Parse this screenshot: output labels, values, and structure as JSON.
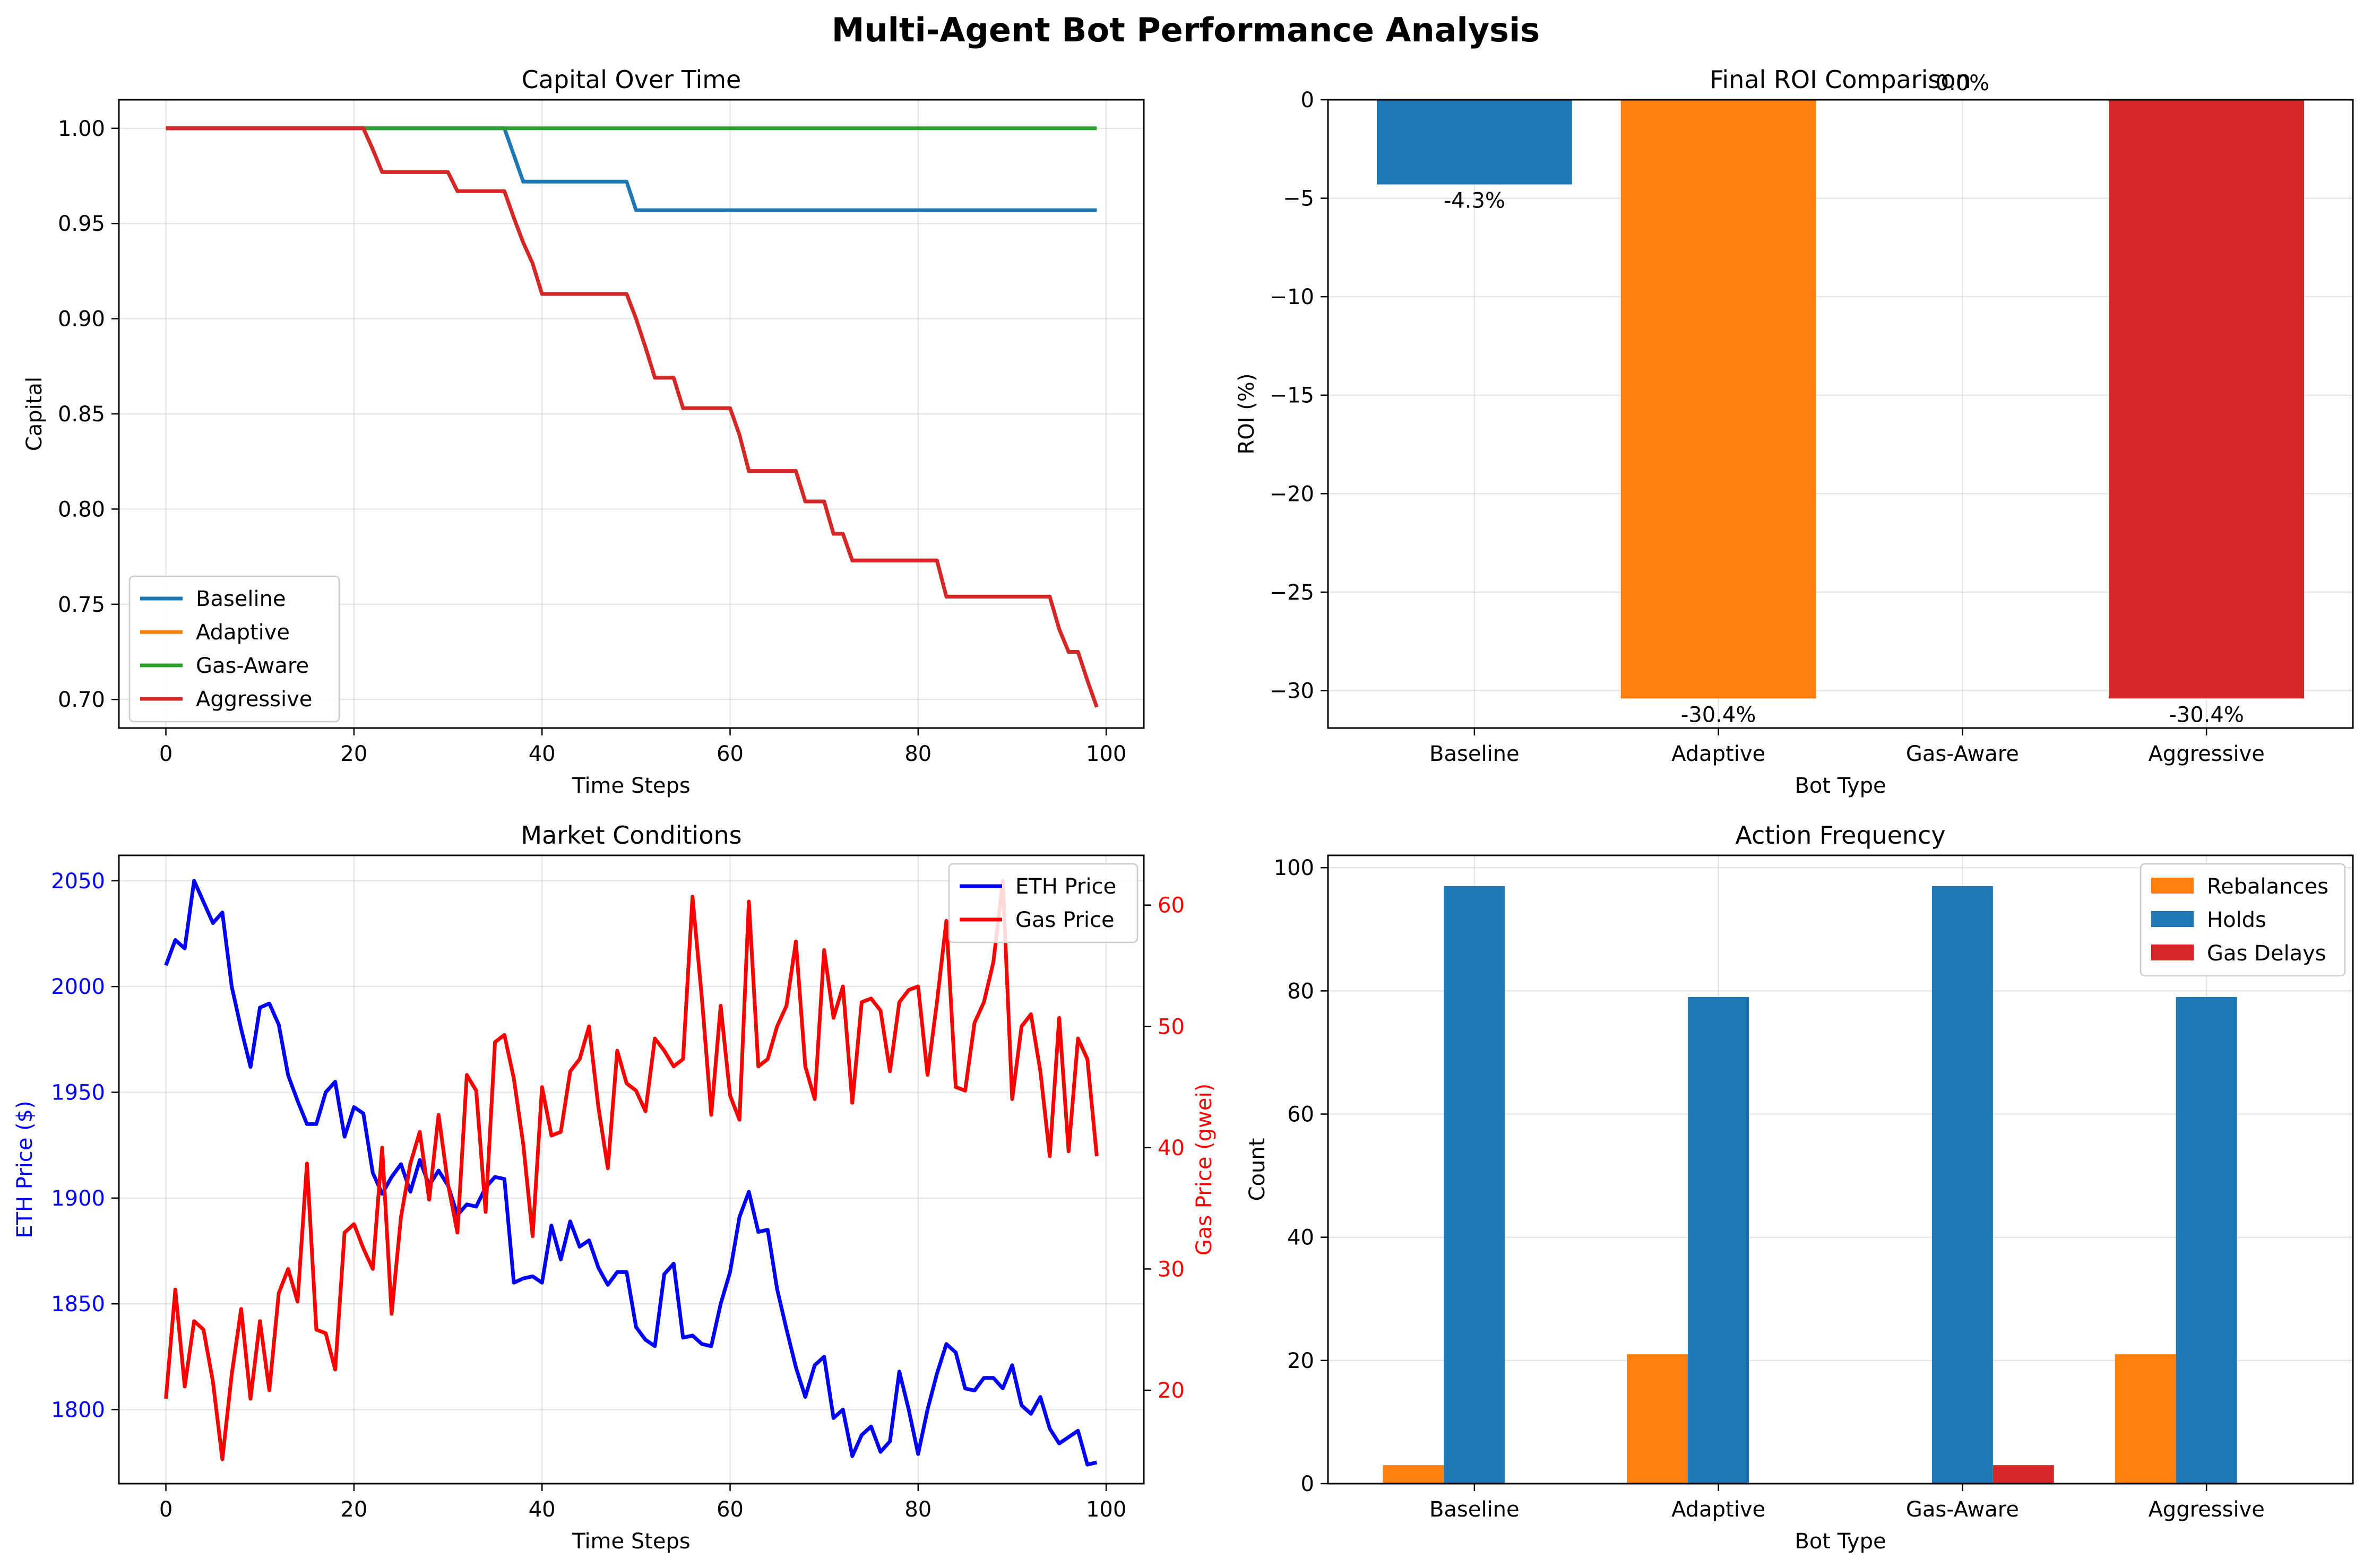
{
  "figure": {
    "title": "Multi-Agent Bot Performance Analysis"
  },
  "chart_data": [
    {
      "id": "capital",
      "type": "line",
      "title": "Capital Over Time",
      "xlabel": "Time Steps",
      "ylabel": "Capital",
      "xlim": [
        -5,
        104
      ],
      "ylim": [
        0.685,
        1.015
      ],
      "xticks": [
        0,
        20,
        40,
        60,
        80,
        100
      ],
      "yticks": [
        0.7,
        0.75,
        0.8,
        0.85,
        0.9,
        0.95,
        1.0
      ],
      "grid": true,
      "legend": "lower-left",
      "series": [
        {
          "name": "Baseline",
          "color": "#1f77b4",
          "points": [
            [
              0,
              1.0
            ],
            [
              36,
              1.0
            ],
            [
              38,
              0.972
            ],
            [
              49,
              0.972
            ],
            [
              50,
              0.957
            ],
            [
              99,
              0.957
            ]
          ]
        },
        {
          "name": "Adaptive",
          "color": "#ff7f0e",
          "points": [
            [
              0,
              1.0
            ],
            [
              21,
              1.0
            ],
            [
              22,
              0.989
            ],
            [
              23,
              0.977
            ],
            [
              30,
              0.977
            ],
            [
              31,
              0.967
            ],
            [
              36,
              0.967
            ],
            [
              37,
              0.953
            ],
            [
              38,
              0.94
            ],
            [
              39,
              0.929
            ],
            [
              40,
              0.913
            ],
            [
              49,
              0.913
            ],
            [
              50,
              0.9
            ],
            [
              51,
              0.885
            ],
            [
              52,
              0.869
            ],
            [
              54,
              0.869
            ],
            [
              55,
              0.853
            ],
            [
              60,
              0.853
            ],
            [
              61,
              0.839
            ],
            [
              62,
              0.82
            ],
            [
              67,
              0.82
            ],
            [
              68,
              0.804
            ],
            [
              70,
              0.804
            ],
            [
              71,
              0.787
            ],
            [
              72,
              0.787
            ],
            [
              73,
              0.773
            ],
            [
              82,
              0.773
            ],
            [
              83,
              0.754
            ],
            [
              94,
              0.754
            ],
            [
              95,
              0.737
            ],
            [
              96,
              0.725
            ],
            [
              97,
              0.725
            ],
            [
              98,
              0.71
            ],
            [
              99,
              0.696
            ]
          ]
        },
        {
          "name": "Gas-Aware",
          "color": "#2ca02c",
          "points": [
            [
              0,
              1.0
            ],
            [
              99,
              1.0
            ]
          ]
        },
        {
          "name": "Aggressive",
          "color": "#d62728",
          "points": [
            [
              0,
              1.0
            ],
            [
              21,
              1.0
            ],
            [
              22,
              0.989
            ],
            [
              23,
              0.977
            ],
            [
              30,
              0.977
            ],
            [
              31,
              0.967
            ],
            [
              36,
              0.967
            ],
            [
              37,
              0.953
            ],
            [
              38,
              0.94
            ],
            [
              39,
              0.929
            ],
            [
              40,
              0.913
            ],
            [
              49,
              0.913
            ],
            [
              50,
              0.9
            ],
            [
              51,
              0.885
            ],
            [
              52,
              0.869
            ],
            [
              54,
              0.869
            ],
            [
              55,
              0.853
            ],
            [
              60,
              0.853
            ],
            [
              61,
              0.839
            ],
            [
              62,
              0.82
            ],
            [
              67,
              0.82
            ],
            [
              68,
              0.804
            ],
            [
              70,
              0.804
            ],
            [
              71,
              0.787
            ],
            [
              72,
              0.787
            ],
            [
              73,
              0.773
            ],
            [
              82,
              0.773
            ],
            [
              83,
              0.754
            ],
            [
              94,
              0.754
            ],
            [
              95,
              0.737
            ],
            [
              96,
              0.725
            ],
            [
              97,
              0.725
            ],
            [
              98,
              0.71
            ],
            [
              99,
              0.696
            ]
          ]
        }
      ]
    },
    {
      "id": "roi",
      "type": "bar",
      "title": "Final ROI Comparison",
      "xlabel": "Bot Type",
      "ylabel": "ROI (%)",
      "categories": [
        "Baseline",
        "Adaptive",
        "Gas-Aware",
        "Aggressive"
      ],
      "values": [
        -4.3,
        -30.4,
        0.0,
        -30.4
      ],
      "labels": [
        "-4.3%",
        "-30.4%",
        "0.0%",
        "-30.4%"
      ],
      "colors": [
        "#1f77b4",
        "#ff7f0e",
        "#2ca02c",
        "#d62728"
      ],
      "ylim": [
        -31.9,
        0
      ],
      "yticks": [
        0,
        -5,
        -10,
        -15,
        -20,
        -25,
        -30
      ],
      "grid": true
    },
    {
      "id": "market",
      "type": "line",
      "title": "Market Conditions",
      "xlabel": "Time Steps",
      "ylabel_left": "ETH Price ($)",
      "ylabel_right": "Gas Price (gwei)",
      "xlim": [
        -5,
        104
      ],
      "ylim_left": [
        1765,
        2062
      ],
      "ylim_right": [
        12.3,
        64.1
      ],
      "xticks": [
        0,
        20,
        40,
        60,
        80,
        100
      ],
      "yticks_left": [
        1800,
        1850,
        1900,
        1950,
        2000,
        2050
      ],
      "yticks_right": [
        20,
        30,
        40,
        50,
        60
      ],
      "grid": true,
      "legend": "top-right",
      "series": [
        {
          "name": "ETH Price",
          "color": "#0000ff",
          "axis": "left",
          "values": [
            2010,
            2022,
            2018,
            2050,
            2040,
            2030,
            2035,
            2000,
            1980,
            1962,
            1990,
            1992,
            1982,
            1958,
            1946,
            1935,
            1935,
            1950,
            1955,
            1929,
            1943,
            1940,
            1912,
            1902,
            1910,
            1916,
            1903,
            1918,
            1906,
            1913,
            1906,
            1892,
            1897,
            1896,
            1905,
            1910,
            1909,
            1860,
            1862,
            1863,
            1860,
            1887,
            1871,
            1889,
            1877,
            1880,
            1867,
            1859,
            1865,
            1865,
            1839,
            1833,
            1830,
            1864,
            1869,
            1834,
            1835,
            1831,
            1830,
            1850,
            1865,
            1891,
            1903,
            1884,
            1885,
            1857,
            1838,
            1820,
            1806,
            1821,
            1825,
            1796,
            1800,
            1778,
            1788,
            1792,
            1780,
            1785,
            1818,
            1800,
            1779,
            1800,
            1817,
            1831,
            1827,
            1810,
            1809,
            1815,
            1815,
            1810,
            1821,
            1802,
            1798,
            1806,
            1791,
            1784,
            1787,
            1790,
            1774,
            1775
          ]
        },
        {
          "name": "Gas Price",
          "color": "#ff0000",
          "axis": "right",
          "values": [
            19.3,
            28.3,
            20.3,
            25.7,
            25.0,
            20.7,
            14.3,
            21.3,
            26.7,
            19.3,
            25.7,
            20.0,
            28.0,
            30.0,
            27.3,
            38.7,
            25.0,
            24.7,
            21.7,
            33.0,
            33.7,
            31.7,
            30.0,
            40.0,
            26.3,
            34.3,
            38.7,
            41.3,
            35.7,
            42.7,
            37.0,
            33.0,
            46.0,
            44.7,
            34.7,
            48.7,
            49.3,
            45.7,
            40.3,
            32.7,
            45.0,
            41.0,
            41.3,
            46.3,
            47.3,
            50.0,
            43.3,
            38.3,
            48.0,
            45.3,
            44.7,
            43.0,
            49.0,
            48.0,
            46.7,
            47.3,
            60.7,
            52.3,
            42.7,
            51.7,
            44.3,
            42.3,
            60.3,
            46.7,
            47.3,
            50.0,
            51.7,
            57.0,
            46.7,
            44.0,
            56.3,
            50.7,
            53.3,
            43.7,
            52.0,
            52.3,
            51.3,
            46.3,
            52.0,
            53.0,
            53.3,
            46.0,
            52.0,
            58.7,
            45.0,
            44.7,
            50.3,
            52.0,
            55.3,
            62.0,
            44.0,
            50.0,
            51.0,
            46.3,
            39.3,
            50.7,
            39.7,
            49.0,
            47.3,
            39.3
          ]
        }
      ]
    },
    {
      "id": "actions",
      "type": "bar",
      "title": "Action Frequency",
      "xlabel": "Bot Type",
      "ylabel": "Count",
      "categories": [
        "Baseline",
        "Adaptive",
        "Gas-Aware",
        "Aggressive"
      ],
      "ylim": [
        0,
        102
      ],
      "yticks": [
        0,
        20,
        40,
        60,
        80,
        100
      ],
      "grid": true,
      "legend": "top-right",
      "series": [
        {
          "name": "Rebalances",
          "color": "#ff7f0e",
          "values": [
            3,
            21,
            0,
            21
          ]
        },
        {
          "name": "Holds",
          "color": "#1f77b4",
          "values": [
            97,
            79,
            97,
            79
          ]
        },
        {
          "name": "Gas Delays",
          "color": "#d62728",
          "values": [
            0,
            0,
            3,
            0
          ]
        }
      ]
    }
  ]
}
